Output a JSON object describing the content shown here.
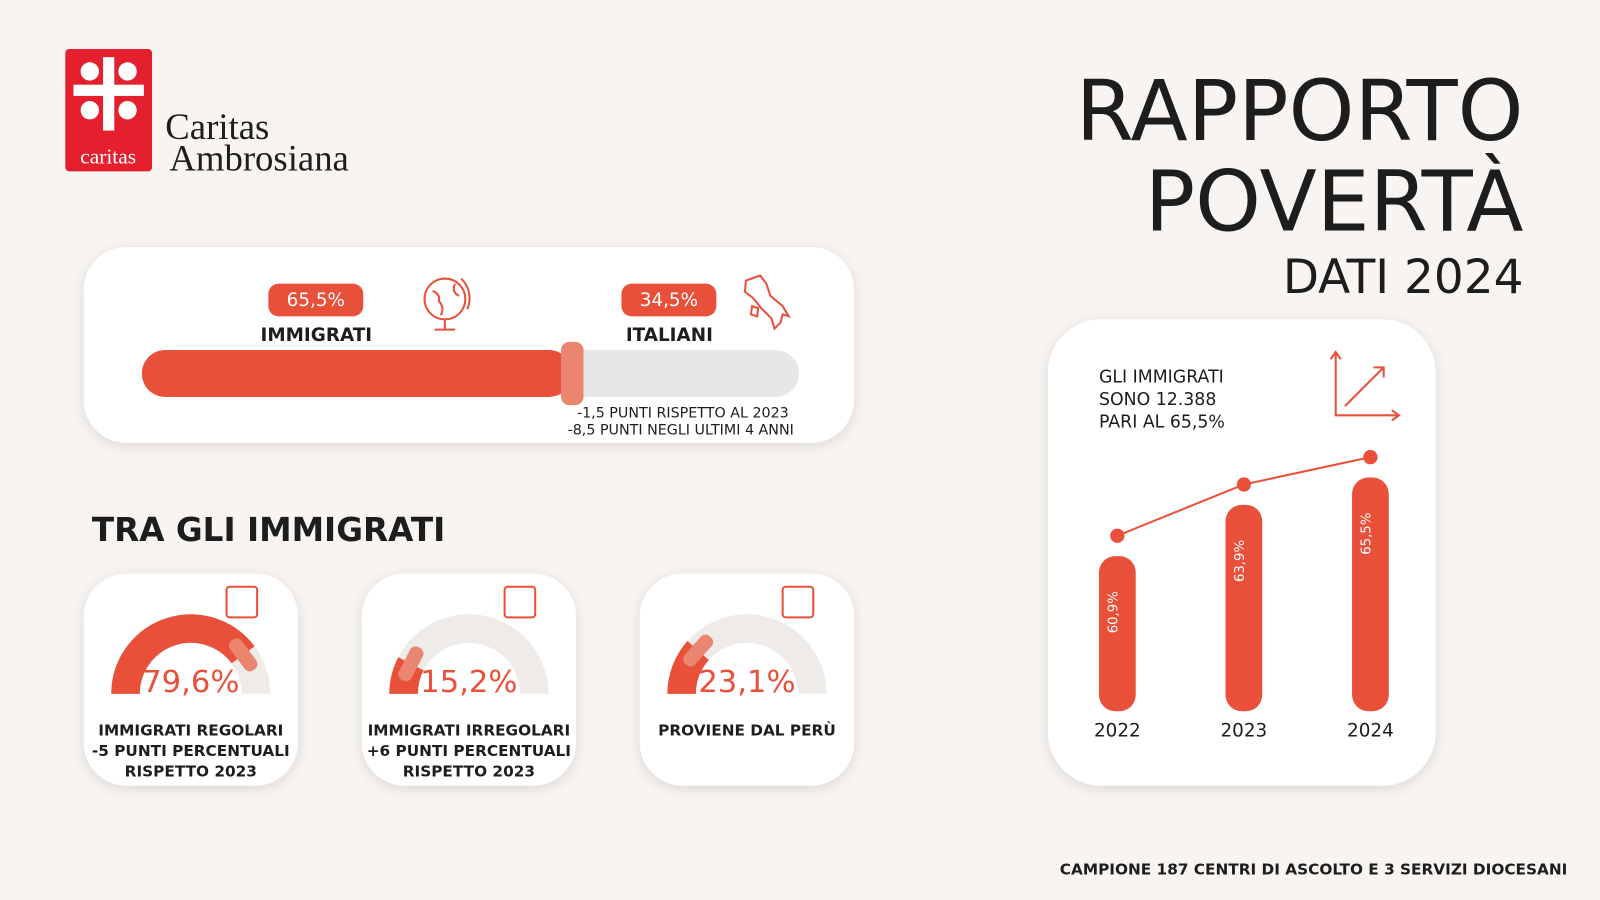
{
  "logo": {
    "badge": "caritas",
    "name_line1": "Caritas",
    "name_line2": "Ambrosiana"
  },
  "header": {
    "title_line1": "RAPPORTO",
    "title_line2": "POVERTÀ",
    "subtitle": "DATI 2024"
  },
  "split": {
    "series": [
      {
        "name": "IMMIGRATI",
        "value": 65.5,
        "value_label": "65,5%",
        "color": "#e9503a"
      },
      {
        "name": "ITALIANI",
        "value": 34.5,
        "value_label": "34,5%",
        "color": "#e9e7e5"
      }
    ],
    "notes": [
      "-1,5 PUNTI RISPETTO AL 2023",
      "-8,5 PUNTI NEGLI ULTIMI 4 ANNI"
    ]
  },
  "section_title": "TRA GLI IMMIGRATI",
  "gauges": [
    {
      "value": 79.6,
      "value_label": "79,6%",
      "lines": [
        "IMMIGRATI REGOLARI",
        "-5 PUNTI PERCENTUALI",
        "RISPETTO 2023"
      ]
    },
    {
      "value": 15.2,
      "value_label": "15,2%",
      "lines": [
        "IMMIGRATI IRREGOLARI",
        "+6 PUNTI PERCENTUALI",
        "RISPETTO 2023"
      ]
    },
    {
      "value": 23.1,
      "value_label": "23,1%",
      "lines": [
        "PROVIENE DAL PERÙ"
      ]
    }
  ],
  "trend": {
    "note_lines": [
      "GLI IMMIGRATI",
      "SONO 12.388",
      "PARI AL 65,5%"
    ],
    "categories": [
      "2022",
      "2023",
      "2024"
    ],
    "values": [
      60.9,
      63.9,
      65.5
    ],
    "value_labels": [
      "60,9%",
      "63,9%",
      "65,5%"
    ],
    "color": "#e9503a"
  },
  "footer": "CAMPIONE 187 CENTRI DI ASCOLTO E 3 SERVIZI DIOCESANI"
}
